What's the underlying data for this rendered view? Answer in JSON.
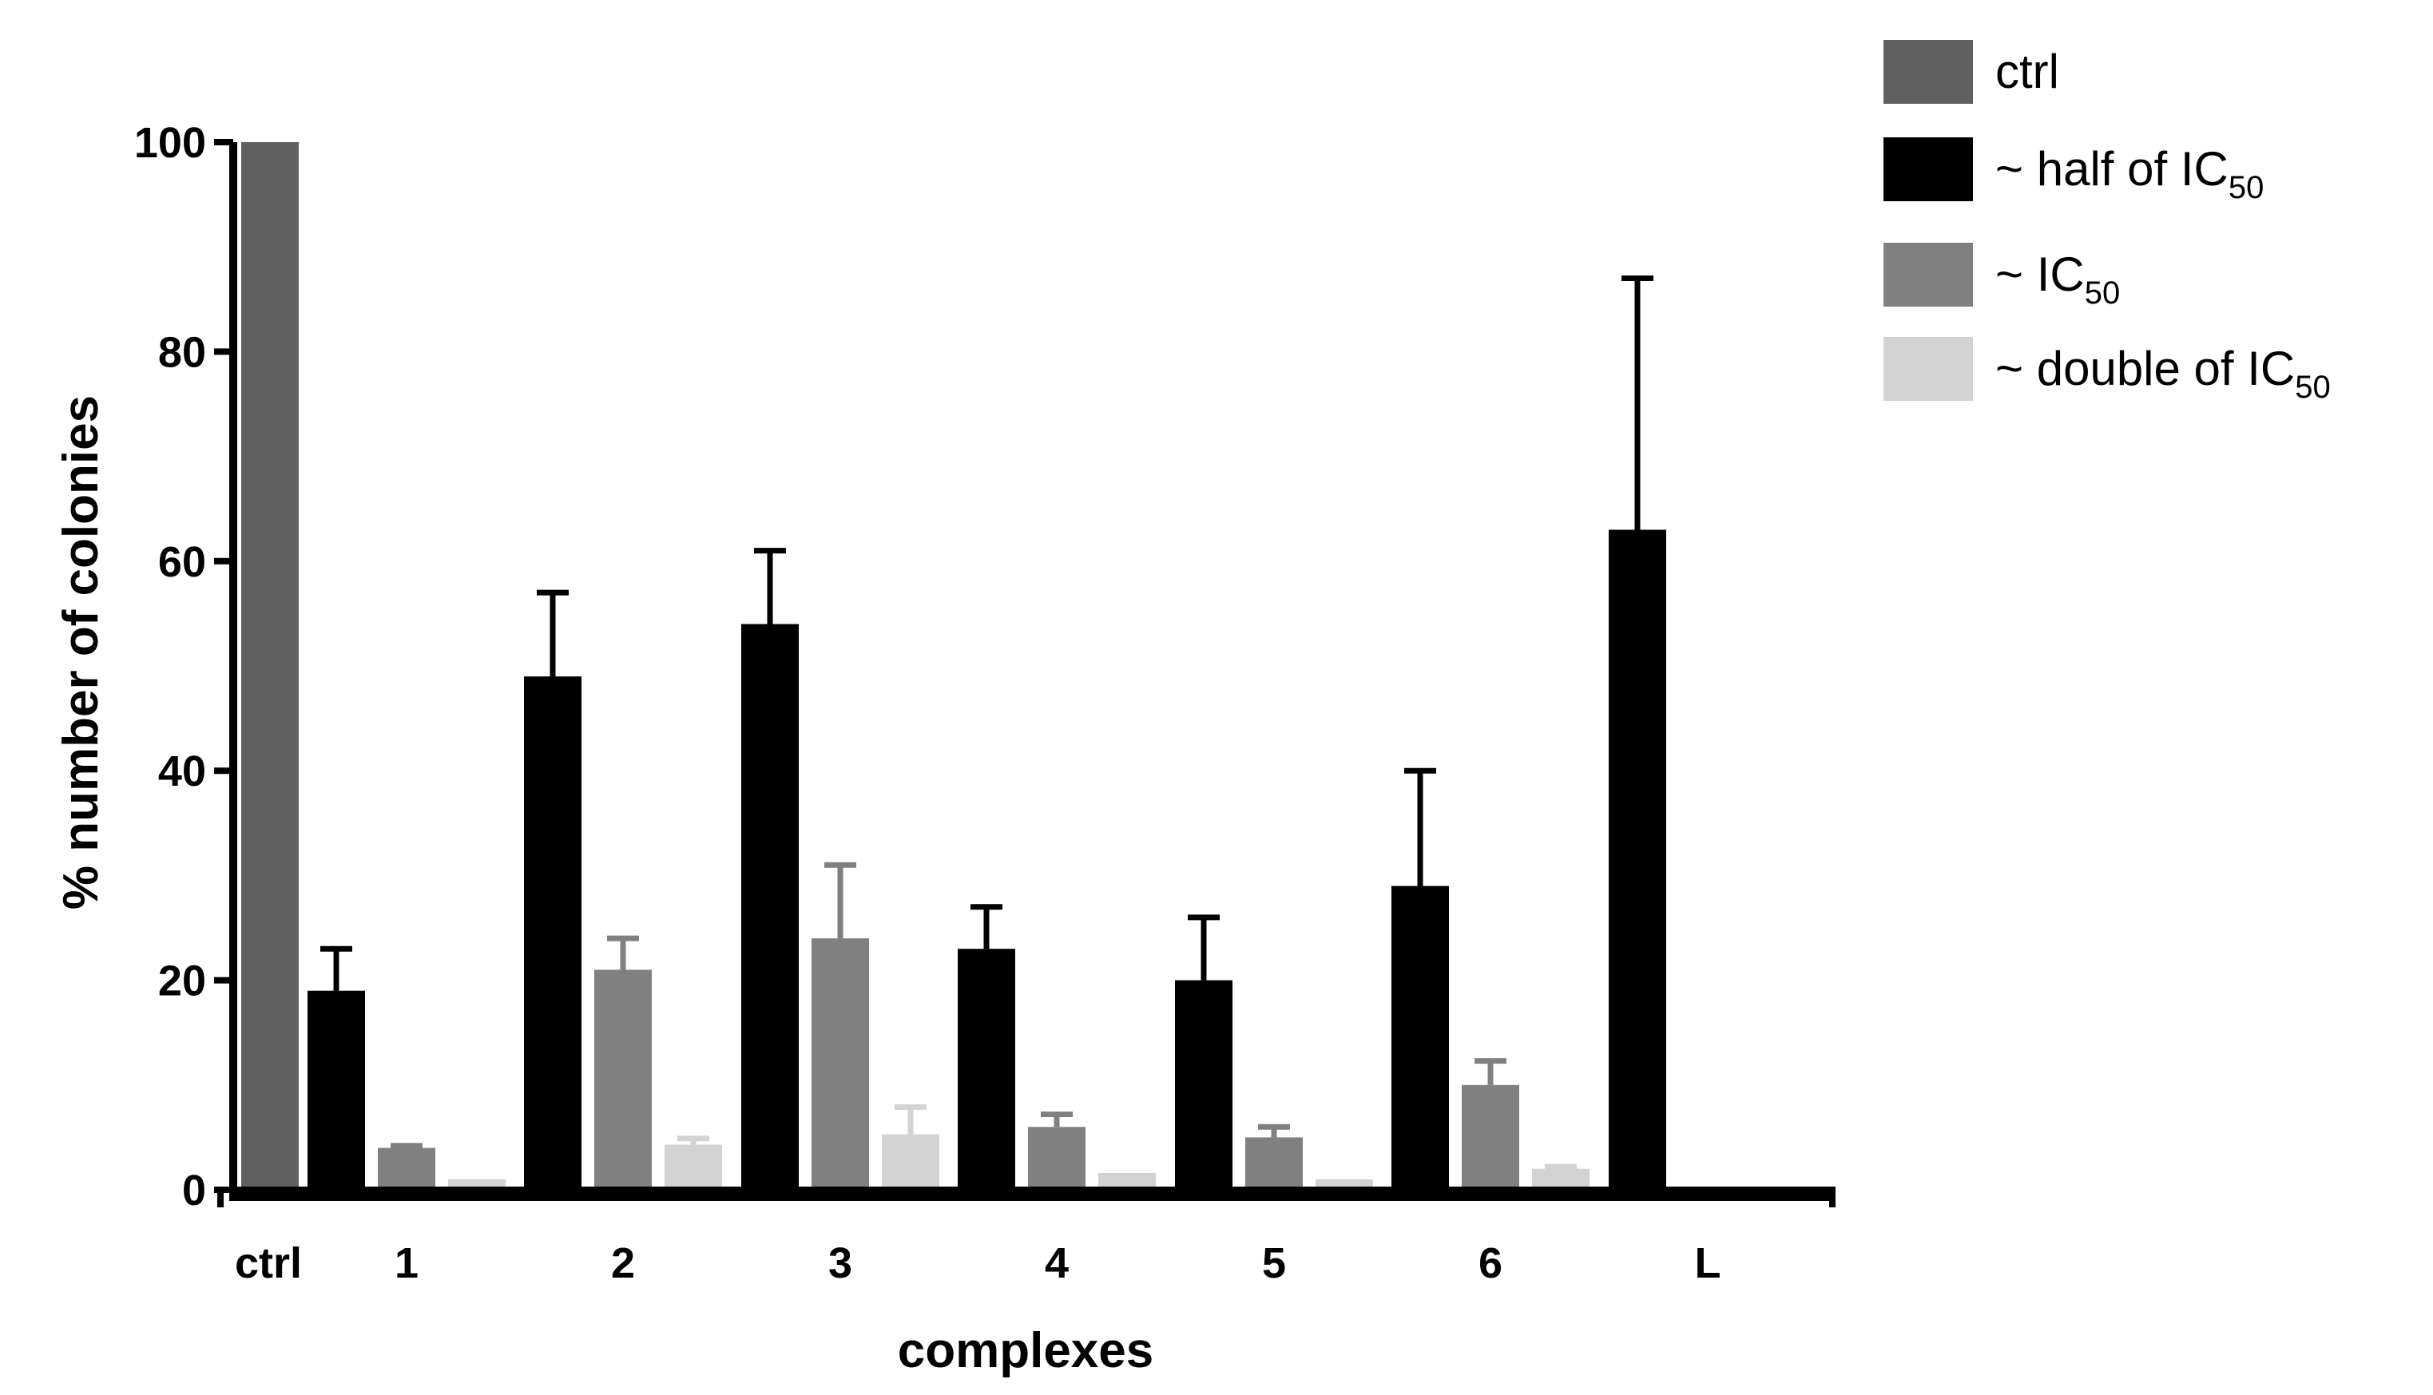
{
  "chart_data": {
    "type": "bar",
    "xlabel": "complexes",
    "ylabel": "% number of colonies",
    "ylim": [
      0,
      100
    ],
    "yticks": [
      "0",
      "20",
      "40",
      "60",
      "80",
      "100"
    ],
    "categories": [
      "ctrl",
      "1",
      "2",
      "3",
      "4",
      "5",
      "6",
      "L"
    ],
    "grid": false,
    "legend_position": "top-right",
    "series": [
      {
        "name": "ctrl",
        "legend_main": "ctrl",
        "legend_sub": "",
        "color": "#606060",
        "values": [
          100,
          null,
          null,
          null,
          null,
          null,
          null,
          null
        ],
        "errors": [
          0,
          null,
          null,
          null,
          null,
          null,
          null,
          null
        ]
      },
      {
        "name": "~ half of IC50",
        "legend_main": "~ half of IC",
        "legend_sub": "50",
        "color": "#000000",
        "values": [
          null,
          19,
          49,
          54,
          23,
          20,
          29,
          63
        ],
        "errors": [
          null,
          4,
          8,
          7,
          4,
          6,
          11,
          24
        ]
      },
      {
        "name": "~ IC50",
        "legend_main": "~ IC",
        "legend_sub": "50",
        "color": "#808080",
        "values": [
          null,
          4,
          21,
          24,
          6,
          5,
          10,
          null
        ],
        "errors": [
          null,
          0.2,
          3,
          7,
          1.2,
          1,
          2.3,
          null
        ]
      },
      {
        "name": "~ double of IC50",
        "legend_main": "~ double of IC",
        "legend_sub": "50",
        "color": "#d3d3d3",
        "values": [
          null,
          1,
          4.3,
          5.3,
          1.6,
          1,
          2,
          null
        ],
        "errors": [
          null,
          0,
          0.6,
          2.6,
          0,
          0,
          0.2,
          null
        ]
      }
    ]
  }
}
